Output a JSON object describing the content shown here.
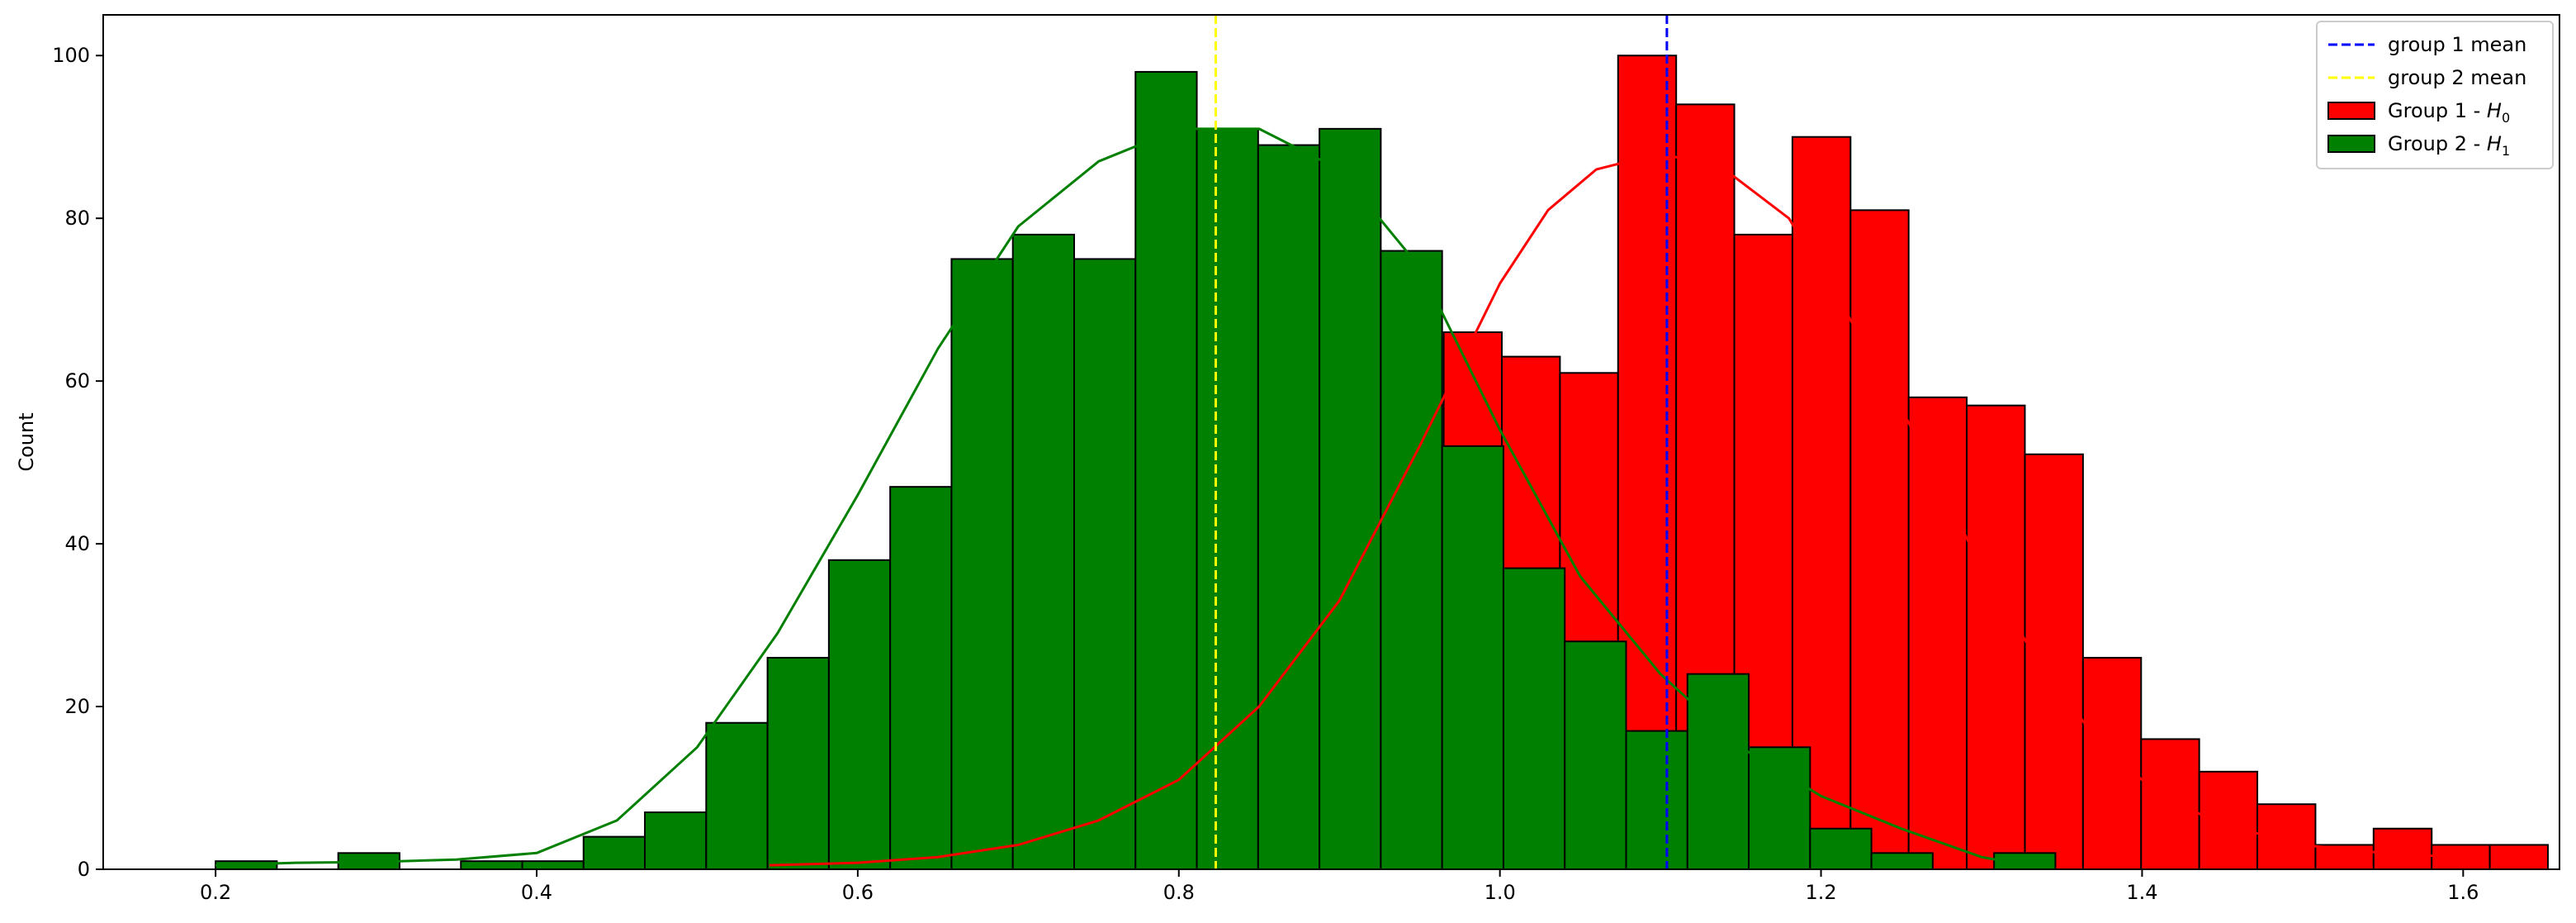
{
  "chart_data": {
    "type": "histogram",
    "xlabel": "",
    "ylabel": "Count",
    "xlim": [
      0.13,
      1.66
    ],
    "ylim": [
      0,
      105
    ],
    "xticks": [
      0.2,
      0.4,
      0.6,
      0.8,
      1.0,
      1.2,
      1.4,
      1.6
    ],
    "xtick_labels": [
      "0.2",
      "0.4",
      "0.6",
      "0.8",
      "1.0",
      "1.2",
      "1.4",
      "1.6"
    ],
    "yticks": [
      0,
      20,
      40,
      60,
      80,
      100
    ],
    "ytick_labels": [
      "0",
      "20",
      "40",
      "60",
      "80",
      "100"
    ],
    "grid": false,
    "legend_position": "top-right",
    "series": [
      {
        "name": "Group 1 - ",
        "math": "H",
        "subscript": "0",
        "color": "#ff0000",
        "edgecolor": "#000000",
        "bin_start": 0.965,
        "bin_width": 0.0362,
        "counts": [
          66,
          63,
          61,
          100,
          94,
          78,
          90,
          81,
          58,
          57,
          51,
          26,
          16,
          12,
          8,
          3,
          5,
          3,
          3
        ],
        "kde": [
          [
            0.545,
            0.5
          ],
          [
            0.6,
            0.8
          ],
          [
            0.65,
            1.5
          ],
          [
            0.7,
            3
          ],
          [
            0.75,
            6
          ],
          [
            0.8,
            11
          ],
          [
            0.85,
            20
          ],
          [
            0.9,
            33
          ],
          [
            0.95,
            52
          ],
          [
            0.98,
            64
          ],
          [
            1.0,
            72
          ],
          [
            1.03,
            81
          ],
          [
            1.06,
            86
          ],
          [
            1.1,
            88
          ],
          [
            1.14,
            86
          ],
          [
            1.18,
            80
          ],
          [
            1.22,
            67
          ],
          [
            1.26,
            53
          ],
          [
            1.3,
            37
          ],
          [
            1.34,
            24
          ],
          [
            1.38,
            14
          ],
          [
            1.42,
            8
          ],
          [
            1.46,
            5
          ],
          [
            1.5,
            3
          ],
          [
            1.55,
            2
          ],
          [
            1.595,
            1.5
          ]
        ],
        "mean": 1.104,
        "mean_label": "group 1 mean",
        "mean_color": "#0000ff"
      },
      {
        "name": "Group 2 - ",
        "math": "H",
        "subscript": "1",
        "color": "#008000",
        "edgecolor": "#000000",
        "bin_start": 0.2,
        "bin_width": 0.0382,
        "counts": [
          1,
          0,
          2,
          0,
          1,
          1,
          4,
          7,
          18,
          26,
          38,
          47,
          75,
          78,
          75,
          98,
          91,
          89,
          91,
          76,
          52,
          37,
          28,
          17,
          24,
          15,
          5,
          2,
          0,
          2
        ],
        "kde": [
          [
            0.2,
            0.5
          ],
          [
            0.25,
            0.8
          ],
          [
            0.3,
            0.9
          ],
          [
            0.35,
            1.2
          ],
          [
            0.4,
            2
          ],
          [
            0.45,
            6
          ],
          [
            0.5,
            15
          ],
          [
            0.55,
            29
          ],
          [
            0.6,
            46
          ],
          [
            0.65,
            64
          ],
          [
            0.7,
            79
          ],
          [
            0.75,
            87
          ],
          [
            0.8,
            91
          ],
          [
            0.85,
            91
          ],
          [
            0.9,
            86
          ],
          [
            0.95,
            74
          ],
          [
            1.0,
            54
          ],
          [
            1.05,
            36
          ],
          [
            1.1,
            24
          ],
          [
            1.15,
            15
          ],
          [
            1.2,
            9
          ],
          [
            1.25,
            5
          ],
          [
            1.3,
            1.5
          ],
          [
            1.32,
            0.8
          ]
        ],
        "mean": 0.823,
        "mean_label": "group 2 mean",
        "mean_color": "#ffff00"
      }
    ]
  }
}
